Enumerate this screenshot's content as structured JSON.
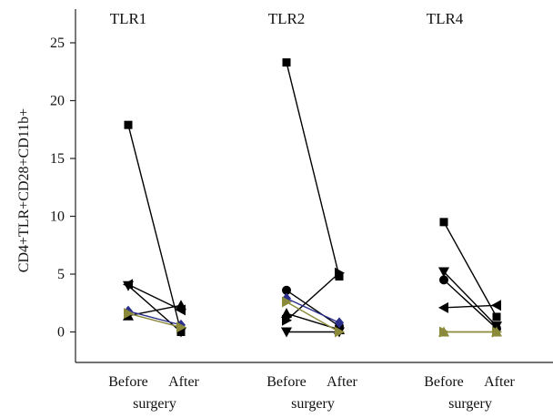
{
  "chart_data": {
    "type": "line",
    "ylabel": "CD4+TLR+CD28+CD11b+",
    "ylim": [
      -2,
      27
    ],
    "yticks": [
      0,
      5,
      10,
      15,
      20,
      25
    ],
    "x_labels": {
      "before": "Before",
      "after": "After",
      "sub": "surgery"
    },
    "colors": {
      "black": "#000000",
      "navy": "#2b2f8c",
      "olive": "#8a8a3a"
    },
    "panels": [
      {
        "title": "TLR1",
        "pairs": [
          {
            "before": 17.9,
            "after": 0.0,
            "marker": "square",
            "color": "black"
          },
          {
            "before": 4.1,
            "after": 1.9,
            "marker": "left-triangle",
            "color": "black"
          },
          {
            "before": 4.0,
            "after": 0.0,
            "marker": "down-triangle",
            "color": "black"
          },
          {
            "before": 1.4,
            "after": 2.3,
            "marker": "up-triangle",
            "color": "black"
          },
          {
            "before": 1.8,
            "after": 0.6,
            "marker": "diamond",
            "color": "navy"
          },
          {
            "before": 1.6,
            "after": 0.4,
            "marker": "right-triangle",
            "color": "olive"
          }
        ]
      },
      {
        "title": "TLR2",
        "pairs": [
          {
            "before": 23.3,
            "after": 4.8,
            "marker": "square",
            "color": "black"
          },
          {
            "before": 3.6,
            "after": 0.5,
            "marker": "circle",
            "color": "black"
          },
          {
            "before": 1.0,
            "after": 5.1,
            "marker": "right-triangle",
            "color": "black"
          },
          {
            "before": 1.6,
            "after": 0.2,
            "marker": "up-triangle",
            "color": "black"
          },
          {
            "before": 0.0,
            "after": 0.0,
            "marker": "down-triangle",
            "color": "black"
          },
          {
            "before": 2.9,
            "after": 0.8,
            "marker": "diamond",
            "color": "navy"
          },
          {
            "before": 2.6,
            "after": 0.0,
            "marker": "right-triangle",
            "color": "olive"
          }
        ]
      },
      {
        "title": "TLR4",
        "pairs": [
          {
            "before": 9.5,
            "after": 1.3,
            "marker": "square",
            "color": "black"
          },
          {
            "before": 5.2,
            "after": 0.5,
            "marker": "down-triangle",
            "color": "black"
          },
          {
            "before": 4.5,
            "after": 0.3,
            "marker": "circle",
            "color": "black"
          },
          {
            "before": 2.1,
            "after": 2.3,
            "marker": "left-triangle",
            "color": "black"
          },
          {
            "before": 0.0,
            "after": 0.0,
            "marker": "up-triangle",
            "color": "olive"
          },
          {
            "before": 0.0,
            "after": 0.0,
            "marker": "right-triangle",
            "color": "olive"
          }
        ]
      }
    ]
  }
}
